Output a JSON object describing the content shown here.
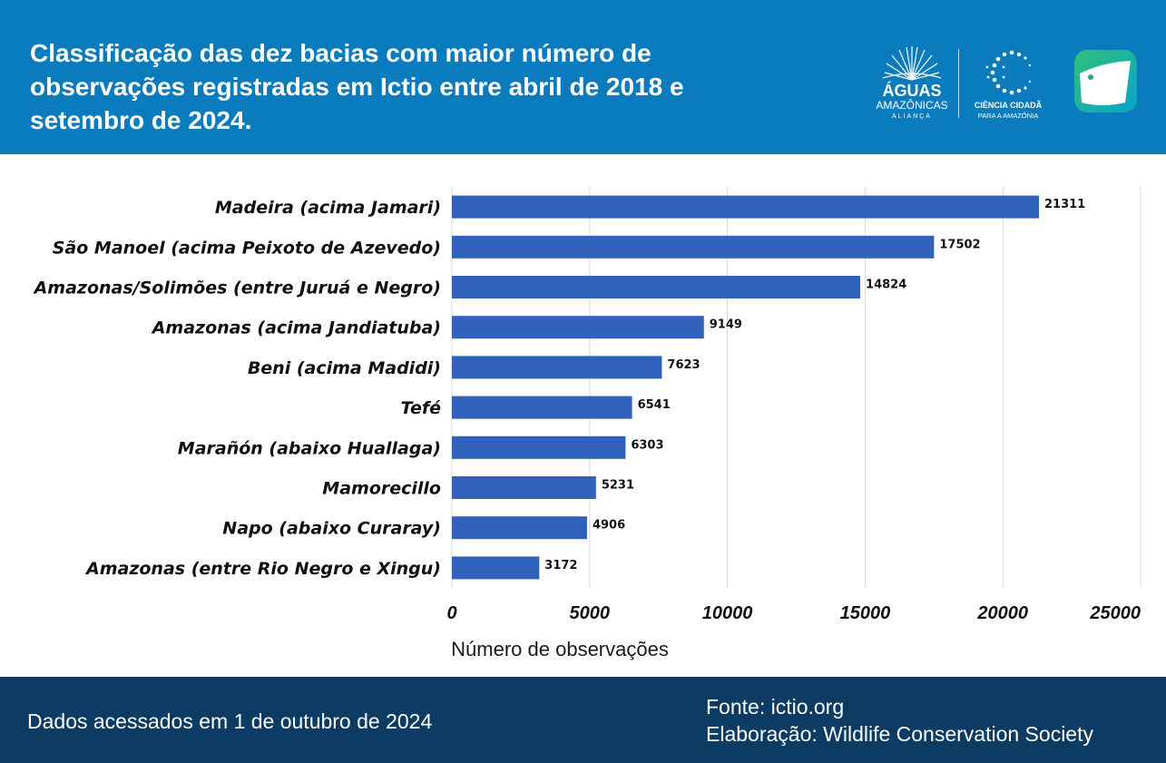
{
  "header": {
    "title": "Classificação das dez bacias com maior número de observações registradas em Ictio entre abril de 2018 e setembro de 2024.",
    "logo_aguas": {
      "line1": "ÁGUAS",
      "line2": "AMAZÔNICAS",
      "line3": "ALIANÇA"
    },
    "logo_ciencia": {
      "line1": "CIÊNCIA CIDADÃ",
      "line2": "PARA A AMAZÔNIA"
    }
  },
  "colors": {
    "header_bg": "#0a7bbd",
    "footer_bg": "#0c3c63",
    "bar": "#3062bb",
    "grid": "#d9d9e3"
  },
  "chart_data": {
    "type": "bar",
    "orientation": "horizontal",
    "categories": [
      "Madeira (acima Jamari)",
      "São Manoel (acima Peixoto de Azevedo)",
      "Amazonas/Solimões (entre Juruá e Negro)",
      "Amazonas (acima Jandiatuba)",
      "Beni (acima Madidi)",
      "Tefé",
      "Marañón (abaixo Huallaga)",
      "Mamorecillo",
      "Napo (abaixo Curaray)",
      "Amazonas (entre Rio Negro e Xingu)"
    ],
    "values": [
      21311,
      17502,
      14824,
      9149,
      7623,
      6541,
      6303,
      5231,
      4906,
      3172
    ],
    "xlabel": "Número de observações",
    "ylabel": "",
    "xlim": [
      0,
      25000
    ],
    "xticks": [
      "0",
      "5000",
      "10000",
      "15000",
      "20000",
      "25000"
    ],
    "grid": true,
    "data_labels": true
  },
  "footer": {
    "accessed": "Dados acessados em 1 de outubro de 2024",
    "source": "Fonte: ictio.org",
    "credit": "Elaboração: Wildlife Conservation Society"
  }
}
